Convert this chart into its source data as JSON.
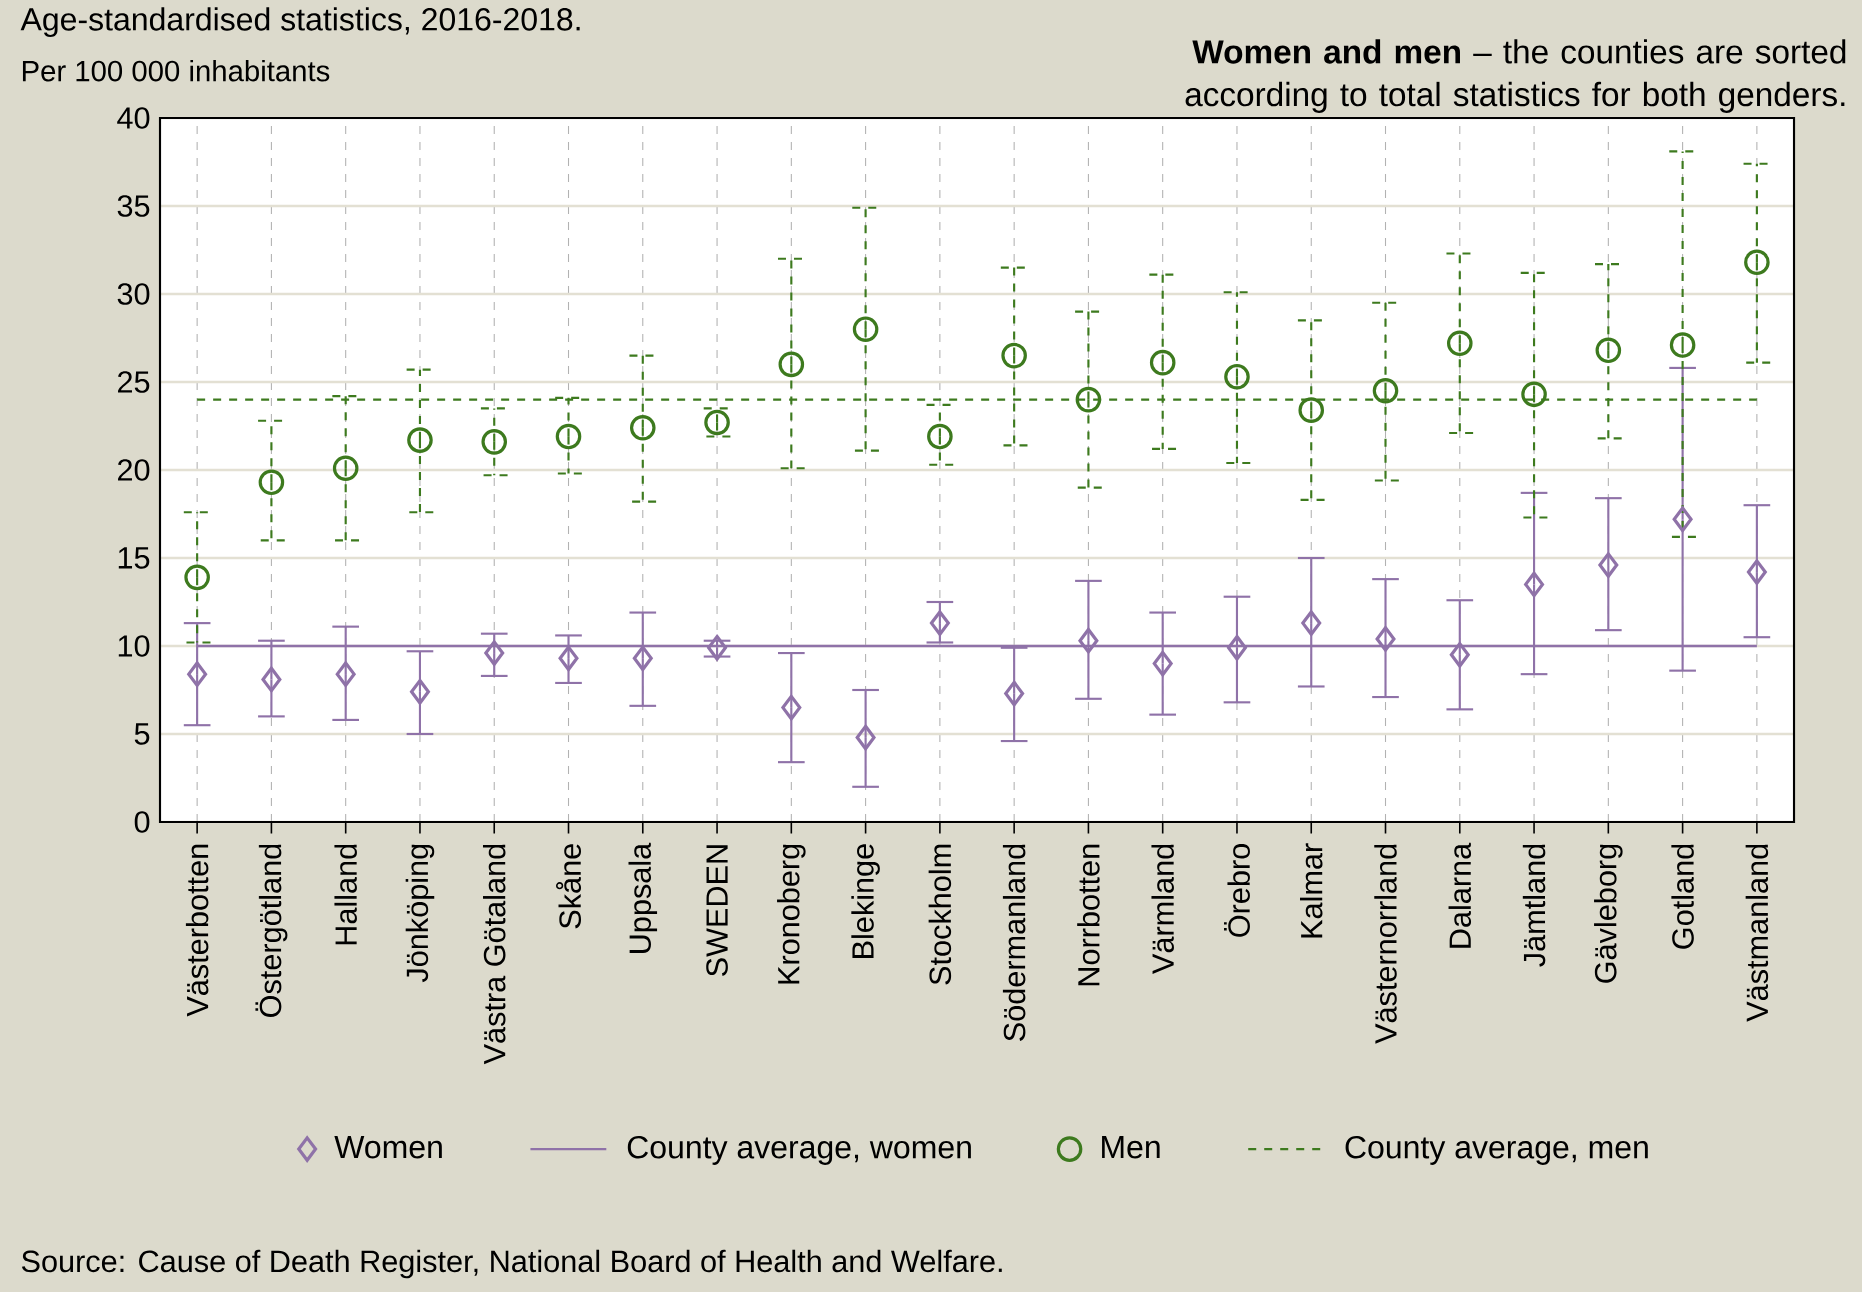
{
  "chart_data": {
    "type": "scatter",
    "subtitle": "Age-standardised statistics, 2016-2018.",
    "title": "**Women and men** – the counties are sorted according to total statistics for both genders.",
    "ylabel": "Per 100 000 inhabitants",
    "annotations": [
      "Source: Cause of Death Register, National Board of Health and Welfare."
    ],
    "categories": [
      "Västerbotten",
      "Östergötland",
      "Halland",
      "Jönköping",
      "Västra Götaland",
      "Skåne",
      "Uppsala",
      "SWEDEN",
      "Kronoberg",
      "Blekinge",
      "Stockholm",
      "Södermanland",
      "Norrbotten",
      "Värmland",
      "Örebro",
      "Kalmar",
      "Västernorrland",
      "Dalarna",
      "Jämtland",
      "Gävleborg",
      "Gotland",
      "Västmanland"
    ],
    "series": [
      {
        "name": "Women",
        "color": "#8f72a8",
        "marker": "diamond",
        "line_style": "solid",
        "values": [
          8.4,
          8.1,
          8.4,
          7.4,
          9.6,
          9.3,
          9.3,
          9.9,
          6.5,
          4.8,
          11.3,
          7.3,
          10.3,
          9.0,
          9.9,
          11.3,
          10.4,
          9.5,
          13.5,
          14.6,
          17.2,
          14.2
        ],
        "errors": [
          [
            5.5,
            11.3
          ],
          [
            6.0,
            10.3
          ],
          [
            5.8,
            11.1
          ],
          [
            5.0,
            9.7
          ],
          [
            8.3,
            10.7
          ],
          [
            7.9,
            10.6
          ],
          [
            6.6,
            11.9
          ],
          [
            9.4,
            10.3
          ],
          [
            3.4,
            9.6
          ],
          [
            2.0,
            7.5
          ],
          [
            10.2,
            12.5
          ],
          [
            4.6,
            9.9
          ],
          [
            7.0,
            13.7
          ],
          [
            6.1,
            11.9
          ],
          [
            6.8,
            12.8
          ],
          [
            7.7,
            15.0
          ],
          [
            7.1,
            13.8
          ],
          [
            6.4,
            12.6
          ],
          [
            8.4,
            18.7
          ],
          [
            10.9,
            18.4
          ],
          [
            8.6,
            25.8
          ],
          [
            10.5,
            18.0
          ]
        ]
      },
      {
        "name": "Men",
        "color": "#3d7a1e",
        "marker": "circle",
        "line_style": "dashed",
        "values": [
          13.9,
          19.3,
          20.1,
          21.7,
          21.6,
          21.9,
          22.4,
          22.7,
          26.0,
          28.0,
          21.9,
          26.5,
          24.0,
          26.1,
          25.3,
          23.4,
          24.5,
          27.2,
          24.3,
          26.8,
          27.1,
          31.8
        ],
        "errors": [
          [
            10.2,
            17.6
          ],
          [
            16.0,
            22.8
          ],
          [
            16.0,
            24.2
          ],
          [
            17.6,
            25.7
          ],
          [
            19.7,
            23.5
          ],
          [
            19.8,
            24.1
          ],
          [
            18.2,
            26.5
          ],
          [
            21.9,
            23.5
          ],
          [
            20.1,
            32.0
          ],
          [
            21.1,
            34.9
          ],
          [
            20.3,
            23.7
          ],
          [
            21.4,
            31.5
          ],
          [
            19.0,
            29.0
          ],
          [
            21.2,
            31.1
          ],
          [
            20.4,
            30.1
          ],
          [
            18.3,
            28.5
          ],
          [
            19.4,
            29.5
          ],
          [
            22.1,
            32.3
          ],
          [
            17.3,
            31.2
          ],
          [
            21.8,
            31.7
          ],
          [
            16.2,
            38.1
          ],
          [
            26.1,
            37.4
          ]
        ]
      }
    ],
    "ref_lines": [
      {
        "axis": "y",
        "value": 10,
        "label": "County average, women",
        "color": "#8f72a8",
        "line_style": "solid"
      },
      {
        "axis": "y",
        "value": 24,
        "label": "County average, men",
        "color": "#3d7a1e",
        "line_style": "dashed"
      }
    ],
    "ylim": [
      0,
      40
    ],
    "yticks": [
      0,
      5,
      10,
      15,
      20,
      25,
      30,
      35,
      40
    ],
    "grid": true,
    "legend": "bottom"
  }
}
